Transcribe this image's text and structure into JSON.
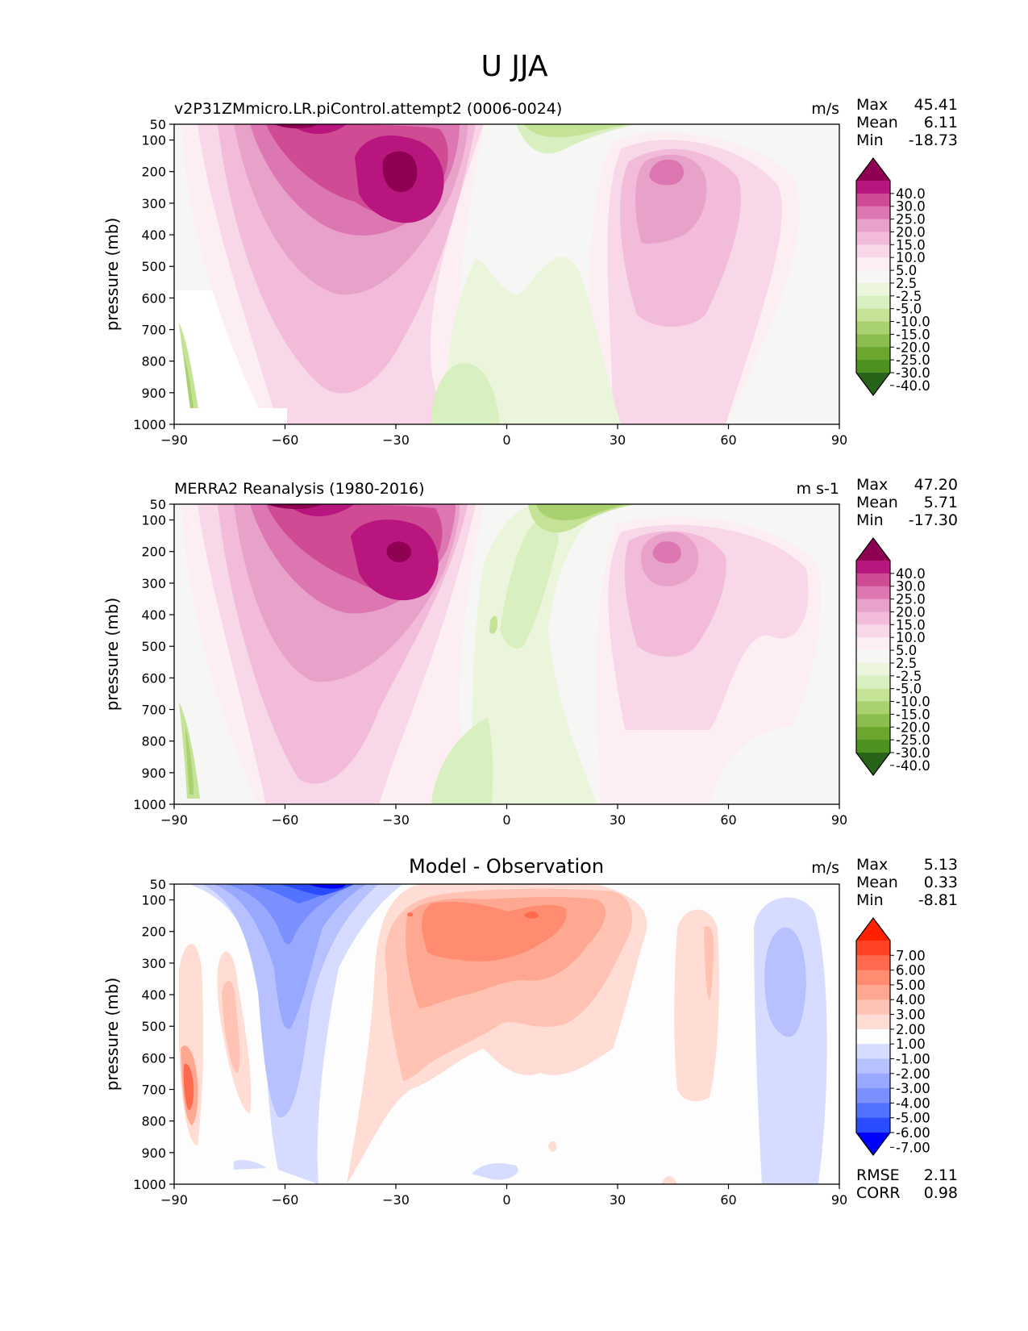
{
  "figure_title": "U JJA",
  "colors": {
    "rdbu": [
      "#0000ff",
      "#2b4bff",
      "#5173ff",
      "#7b8fff",
      "#99a8ff",
      "#b7c1ff",
      "#d6dcff",
      "#fdfdfd",
      "#ffdcd4",
      "#ffc2b3",
      "#ffa891",
      "#ff8c70",
      "#ff6a4e",
      "#ff4324",
      "#ff2000"
    ],
    "pink_green": [
      "#276419",
      "#4d9221",
      "#6ba72e",
      "#8bbd4f",
      "#a9d16f",
      "#c4e396",
      "#d8efbf",
      "#eaf5dc",
      "#f6f6f4",
      "#fdeef4",
      "#f8d7e8",
      "#f2bbda",
      "#e8a1c9",
      "#dd77b1",
      "#cf4c95",
      "#b8157e",
      "#8e0152"
    ]
  },
  "chart_data": [
    {
      "type": "contour",
      "name": "model",
      "title": "v2P31ZMmicro.LR.piControl.attempt2 (0006-0024)",
      "units": "m/s",
      "xlabel": "",
      "ylabel": "pressure (mb)",
      "xlim": [
        -90,
        90
      ],
      "ylim": [
        1000,
        50
      ],
      "xticks": [
        "−90",
        "−60",
        "−30",
        "0",
        "30",
        "60",
        "90"
      ],
      "yticks": [
        "50",
        "100",
        "200",
        "300",
        "400",
        "500",
        "600",
        "700",
        "800",
        "900",
        "1000"
      ],
      "stats": [
        {
          "label": "Max",
          "value": "45.41"
        },
        {
          "label": "Mean",
          "value": "6.11"
        },
        {
          "label": "Min",
          "value": "-18.73"
        }
      ],
      "colorbar": {
        "labels": [
          "40.0",
          "30.0",
          "25.0",
          "20.0",
          "15.0",
          "10.0",
          "5.0",
          "2.5",
          "-2.5",
          "-5.0",
          "-10.0",
          "-15.0",
          "-20.0",
          "-25.0",
          "-30.0",
          "-40.0"
        ]
      },
      "features": [
        {
          "lat": -30,
          "p": 200,
          "level": 16
        },
        {
          "lat": -55,
          "p": 60,
          "level": 16
        },
        {
          "lat": 45,
          "p": 200,
          "level": 14
        },
        {
          "lat": 12,
          "p": 80,
          "level": 5
        },
        {
          "lat": -10,
          "p": 900,
          "level": 6
        },
        {
          "lat": -87,
          "p": 850,
          "level": 5
        }
      ]
    },
    {
      "type": "contour",
      "name": "observation",
      "title": "MERRA2 Reanalysis (1980-2016)",
      "units": "m s-1",
      "xlabel": "",
      "ylabel": "pressure (mb)",
      "xlim": [
        -90,
        90
      ],
      "ylim": [
        1000,
        50
      ],
      "xticks": [
        "−90",
        "−60",
        "−30",
        "0",
        "30",
        "60",
        "90"
      ],
      "yticks": [
        "50",
        "100",
        "200",
        "300",
        "400",
        "500",
        "600",
        "700",
        "800",
        "900",
        "1000"
      ],
      "stats": [
        {
          "label": "Max",
          "value": "47.20"
        },
        {
          "label": "Mean",
          "value": "5.71"
        },
        {
          "label": "Min",
          "value": "-17.30"
        }
      ],
      "colorbar": {
        "labels": [
          "40.0",
          "30.0",
          "25.0",
          "20.0",
          "15.0",
          "10.0",
          "5.0",
          "2.5",
          "-2.5",
          "-5.0",
          "-10.0",
          "-15.0",
          "-20.0",
          "-25.0",
          "-30.0",
          "-40.0"
        ]
      },
      "features": [
        {
          "lat": -30,
          "p": 200,
          "level": 16
        },
        {
          "lat": -55,
          "p": 60,
          "level": 16
        },
        {
          "lat": 44,
          "p": 200,
          "level": 14
        },
        {
          "lat": 12,
          "p": 80,
          "level": 5
        },
        {
          "lat": -10,
          "p": 880,
          "level": 6
        },
        {
          "lat": -87,
          "p": 850,
          "level": 5
        }
      ]
    },
    {
      "type": "contour",
      "name": "difference",
      "title": "Model - Observation",
      "units": "m/s",
      "xlabel": "",
      "ylabel": "pressure (mb)",
      "xlim": [
        -90,
        90
      ],
      "ylim": [
        1000,
        50
      ],
      "xticks": [
        "−90",
        "−60",
        "−30",
        "0",
        "30",
        "60",
        "90"
      ],
      "yticks": [
        "50",
        "100",
        "200",
        "300",
        "400",
        "500",
        "600",
        "700",
        "800",
        "900",
        "1000"
      ],
      "stats": [
        {
          "label": "Max",
          "value": "5.13"
        },
        {
          "label": "Mean",
          "value": "0.33"
        },
        {
          "label": "Min",
          "value": "-8.81"
        }
      ],
      "bottom_stats": [
        {
          "label": "RMSE",
          "value": "2.11"
        },
        {
          "label": "CORR",
          "value": "0.98"
        }
      ],
      "colorbar": {
        "labels": [
          "7.00",
          "6.00",
          "5.00",
          "4.00",
          "3.00",
          "2.00",
          "1.00",
          "-1.00",
          "-2.00",
          "-3.00",
          "-4.00",
          "-5.00",
          "-6.00",
          "-7.00"
        ]
      },
      "features": [
        {
          "lat": -50,
          "p": 60,
          "level": 0
        },
        {
          "lat": -58,
          "p": 400,
          "level": 4
        },
        {
          "lat": -20,
          "p": 250,
          "level": 11
        },
        {
          "lat": 7,
          "p": 200,
          "level": 11
        },
        {
          "lat": -87,
          "p": 720,
          "level": 12
        },
        {
          "lat": 80,
          "p": 380,
          "level": 4
        },
        {
          "lat": 55,
          "p": 300,
          "level": 9
        }
      ]
    }
  ]
}
